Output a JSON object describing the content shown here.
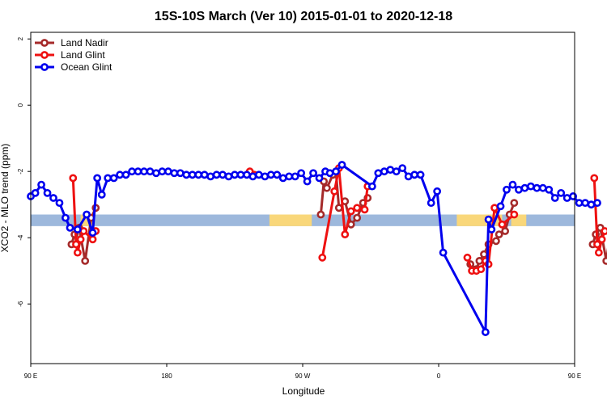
{
  "chart_data": {
    "type": "line",
    "title": "15S-10S March (Ver 10)   2015-01-01 to 2020-12-18",
    "xlabel": "Longitude",
    "ylabel": "XCO2 - MLO trend (ppm)",
    "xlim": [
      90,
      450
    ],
    "ylim": [
      -7.8,
      2.2
    ],
    "x_ticks": [
      {
        "value": 90,
        "label": "90 E"
      },
      {
        "value": 180,
        "label": "180"
      },
      {
        "value": 270,
        "label": "90 W"
      },
      {
        "value": 360,
        "label": "0"
      },
      {
        "value": 450,
        "label": "90 E"
      },
      {
        "value": 540,
        "label": "180"
      }
    ],
    "y_ticks": [
      {
        "value": 2,
        "label": "2"
      },
      {
        "value": 0,
        "label": "0"
      },
      {
        "value": -2,
        "label": "-2"
      },
      {
        "value": -4,
        "label": "-4"
      },
      {
        "value": -6,
        "label": "-6"
      }
    ],
    "grid": false,
    "legend_position": "top-left",
    "bands": [
      {
        "color": "#9db8dc",
        "y": [
          -3.65,
          -3.3
        ],
        "x": [
          90,
          450
        ]
      },
      {
        "color": "#f9d77a",
        "y": [
          -3.65,
          -3.3
        ],
        "x": [
          123,
          132
        ]
      },
      {
        "color": "#f9d77a",
        "y": [
          -3.65,
          -3.3
        ],
        "x": [
          248,
          276
        ]
      },
      {
        "color": "#f9d77a",
        "y": [
          -3.65,
          -3.3
        ],
        "x": [
          372,
          402
        ]
      },
      {
        "color": "#f9d77a",
        "y": [
          -3.65,
          -3.3
        ],
        "x": [
          408,
          418
        ]
      }
    ],
    "series": [
      {
        "name": "Land Nadir",
        "color": "#a52a2a",
        "segments": [
          [
            [
              117,
              -4.2
            ],
            [
              119,
              -3.9
            ],
            [
              122,
              -3.7
            ],
            [
              126,
              -4.7
            ],
            [
              130,
              -3.4
            ],
            [
              133,
              -3.1
            ]
          ],
          [
            [
              282,
              -3.3
            ],
            [
              284,
              -2.3
            ],
            [
              286,
              -2.5
            ],
            [
              290,
              -2.1
            ],
            [
              292,
              -2.0
            ],
            [
              294,
              -3.1
            ],
            [
              298,
              -2.9
            ],
            [
              302,
              -3.6
            ],
            [
              306,
              -3.4
            ],
            [
              310,
              -2.95
            ],
            [
              313,
              -2.8
            ]
          ],
          [
            [
              381,
              -4.8
            ],
            [
              385,
              -4.95
            ],
            [
              387,
              -4.7
            ],
            [
              390,
              -4.5
            ],
            [
              393,
              -4.2
            ],
            [
              398,
              -4.1
            ],
            [
              400,
              -3.9
            ],
            [
              404,
              -3.8
            ],
            [
              407,
              -3.3
            ],
            [
              410,
              -2.95
            ]
          ],
          [
            [
              462,
              -4.2
            ],
            [
              464,
              -3.9
            ],
            [
              467,
              -3.7
            ],
            [
              471,
              -4.7
            ],
            [
              475,
              -3.4
            ],
            [
              478,
              -3.1
            ]
          ]
        ]
      },
      {
        "name": "Land Glint",
        "color": "#ee1111",
        "segments": [
          [
            [
              118,
              -2.2
            ],
            [
              120,
              -4.2
            ],
            [
              121,
              -4.45
            ],
            [
              123,
              -4.05
            ],
            [
              125,
              -3.8
            ],
            [
              131,
              -4.05
            ],
            [
              133,
              -3.8
            ]
          ],
          [
            [
              235,
              -2.0
            ],
            [
              238,
              -2.1
            ]
          ],
          [
            [
              283,
              -4.6
            ],
            [
              291,
              -2.6
            ],
            [
              294,
              -1.9
            ],
            [
              298,
              -3.9
            ],
            [
              302,
              -3.2
            ],
            [
              306,
              -3.1
            ],
            [
              311,
              -3.15
            ],
            [
              313,
              -2.45
            ]
          ],
          [
            [
              379,
              -4.6
            ],
            [
              382,
              -5.0
            ],
            [
              385,
              -5.0
            ],
            [
              388,
              -4.95
            ],
            [
              391,
              -4.7
            ],
            [
              393,
              -4.8
            ],
            [
              397,
              -3.1
            ],
            [
              402,
              -3.6
            ],
            [
              410,
              -3.3
            ]
          ],
          [
            [
              463,
              -2.2
            ],
            [
              465,
              -4.2
            ],
            [
              466,
              -4.45
            ],
            [
              468,
              -4.05
            ],
            [
              470,
              -3.8
            ],
            [
              476,
              -4.05
            ],
            [
              478,
              -3.8
            ]
          ]
        ]
      },
      {
        "name": "Ocean Glint",
        "color": "#0000ee",
        "segments": [
          [
            [
              90,
              -2.75
            ],
            [
              93,
              -2.65
            ],
            [
              97,
              -2.4
            ],
            [
              101,
              -2.65
            ],
            [
              105,
              -2.8
            ],
            [
              109,
              -2.95
            ],
            [
              113,
              -3.4
            ],
            [
              116,
              -3.7
            ],
            [
              121,
              -3.75
            ],
            [
              127,
              -3.3
            ],
            [
              131,
              -3.85
            ],
            [
              134,
              -2.2
            ],
            [
              137,
              -2.7
            ],
            [
              141,
              -2.2
            ],
            [
              145,
              -2.2
            ],
            [
              149,
              -2.1
            ],
            [
              153,
              -2.1
            ],
            [
              157,
              -2.0
            ],
            [
              161,
              -2.0
            ],
            [
              165,
              -2.0
            ],
            [
              169,
              -2.0
            ],
            [
              173,
              -2.05
            ],
            [
              177,
              -2.0
            ],
            [
              181,
              -2.0
            ],
            [
              185,
              -2.05
            ],
            [
              189,
              -2.05
            ],
            [
              193,
              -2.1
            ],
            [
              197,
              -2.1
            ],
            [
              201,
              -2.1
            ],
            [
              205,
              -2.1
            ],
            [
              209,
              -2.15
            ],
            [
              213,
              -2.1
            ],
            [
              217,
              -2.1
            ],
            [
              221,
              -2.15
            ],
            [
              225,
              -2.1
            ],
            [
              229,
              -2.1
            ],
            [
              233,
              -2.1
            ],
            [
              237,
              -2.15
            ],
            [
              241,
              -2.1
            ],
            [
              245,
              -2.15
            ],
            [
              249,
              -2.1
            ],
            [
              253,
              -2.1
            ],
            [
              257,
              -2.2
            ],
            [
              261,
              -2.15
            ],
            [
              265,
              -2.15
            ],
            [
              269,
              -2.05
            ],
            [
              273,
              -2.3
            ],
            [
              277,
              -2.05
            ],
            [
              281,
              -2.2
            ],
            [
              285,
              -2.0
            ],
            [
              288,
              -2.05
            ],
            [
              292,
              -2.0
            ],
            [
              296,
              -1.8
            ],
            [
              316,
              -2.45
            ],
            [
              320,
              -2.05
            ],
            [
              324,
              -2.0
            ],
            [
              328,
              -1.95
            ],
            [
              332,
              -2.0
            ],
            [
              336,
              -1.9
            ],
            [
              340,
              -2.15
            ],
            [
              344,
              -2.1
            ],
            [
              348,
              -2.1
            ],
            [
              355,
              -2.95
            ],
            [
              359,
              -2.6
            ],
            [
              363,
              -4.45
            ],
            [
              391,
              -6.85
            ],
            [
              393,
              -3.45
            ],
            [
              395,
              -3.75
            ],
            [
              401,
              -3.05
            ],
            [
              405,
              -2.55
            ],
            [
              409,
              -2.4
            ],
            [
              413,
              -2.55
            ],
            [
              417,
              -2.5
            ],
            [
              421,
              -2.45
            ],
            [
              425,
              -2.5
            ],
            [
              429,
              -2.5
            ],
            [
              433,
              -2.55
            ],
            [
              437,
              -2.8
            ],
            [
              441,
              -2.65
            ],
            [
              445,
              -2.8
            ],
            [
              449,
              -2.75
            ],
            [
              453,
              -2.95
            ],
            [
              457,
              -2.95
            ],
            [
              461,
              -3.0
            ],
            [
              465,
              -2.95
            ]
          ]
        ]
      }
    ]
  }
}
